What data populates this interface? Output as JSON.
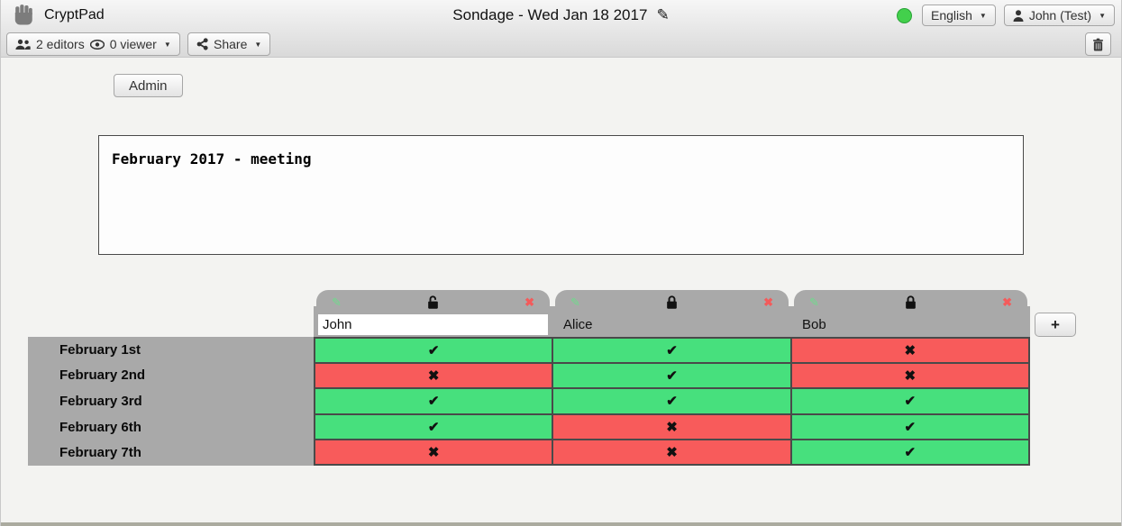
{
  "toolbar": {
    "app_name": "CryptPad",
    "doc_title": "Sondage - Wed Jan 18 2017",
    "editors_count": "2 editors",
    "viewers_count": "0 viewer",
    "share_label": "Share",
    "language_button": "English",
    "user_button": "John (Test)",
    "status_color": "#43D04C"
  },
  "content": {
    "admin_button": "Admin",
    "description_text": "February 2017 - meeting"
  },
  "poll": {
    "columns": [
      {
        "name": "John",
        "editable": true,
        "locked": false
      },
      {
        "name": "Alice",
        "editable": false,
        "locked": true
      },
      {
        "name": "Bob",
        "editable": false,
        "locked": true
      }
    ],
    "rows": [
      {
        "label": "February 1st",
        "votes": [
          "yes",
          "yes",
          "no"
        ]
      },
      {
        "label": "February 2nd",
        "votes": [
          "no",
          "yes",
          "no"
        ]
      },
      {
        "label": "February 3rd",
        "votes": [
          "yes",
          "yes",
          "yes"
        ]
      },
      {
        "label": "February 6th",
        "votes": [
          "yes",
          "no",
          "yes"
        ]
      },
      {
        "label": "February 7th",
        "votes": [
          "no",
          "no",
          "yes"
        ]
      }
    ],
    "add_column_label": "+",
    "glyphs": {
      "yes": "✔",
      "no": "✖",
      "edit": "✎",
      "remove": "✖",
      "caret": "▼",
      "title_edit": "✎"
    },
    "colors": {
      "yes": "#47E07D",
      "no": "#F85B5B",
      "header_gray": "#A9A9A9"
    }
  }
}
